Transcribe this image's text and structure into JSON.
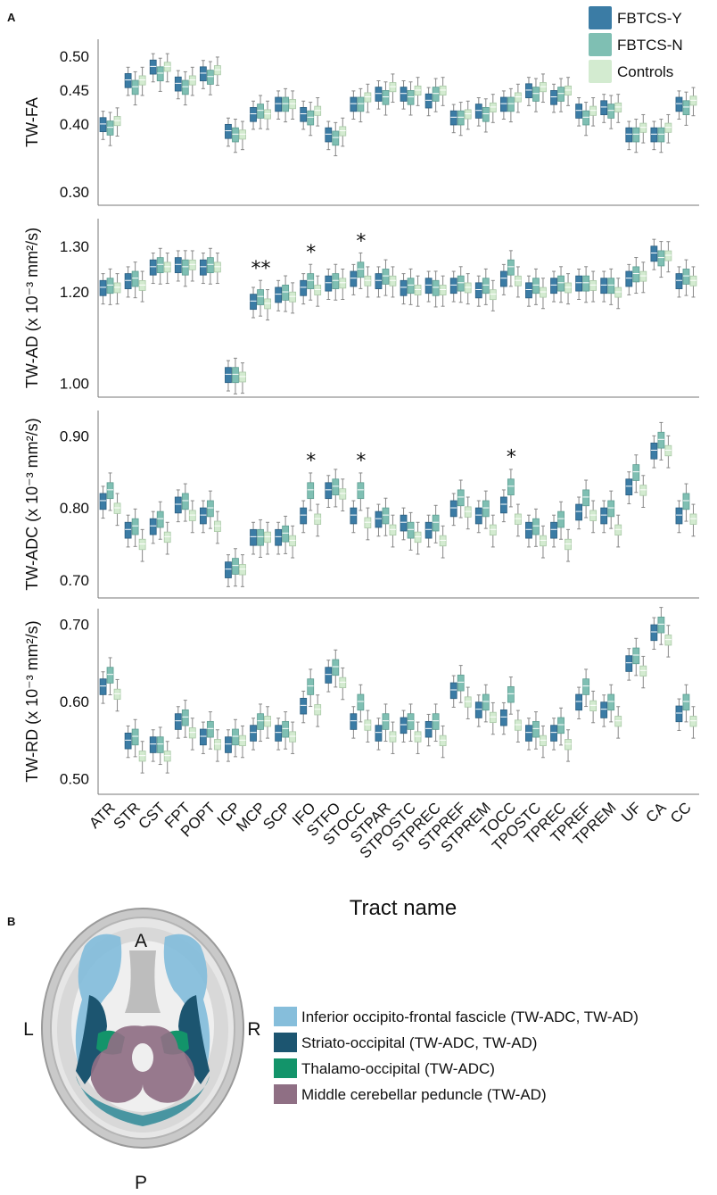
{
  "panel_a_label": "A",
  "panel_b_label": "B",
  "chart_data": {
    "type": "box",
    "legend": [
      {
        "name": "FBTCS-Y",
        "color": "#3b7ca5"
      },
      {
        "name": "FBTCS-N",
        "color": "#7fbfb3"
      },
      {
        "name": "Controls",
        "color": "#d3ebd0"
      }
    ],
    "categories": [
      "ATR",
      "STR",
      "CST",
      "FPT",
      "POPT",
      "ICP",
      "MCP",
      "SCP",
      "IFO",
      "STFO",
      "STOCC",
      "STPAR",
      "STPOSTC",
      "STPREC",
      "STPREF",
      "STPREM",
      "TOCC",
      "TPOSTC",
      "TPREC",
      "TPREF",
      "TPREM",
      "UF",
      "CA",
      "CC"
    ],
    "xlabel": "Tract name",
    "panels": [
      {
        "ylabel": "TW-FA",
        "ylim": [
          0.28,
          0.525
        ],
        "yticks": [
          "0.30",
          "0.40",
          "0.45",
          "0.50"
        ],
        "ytick_values": [
          0.3,
          0.4,
          0.45,
          0.5
        ],
        "significance": [],
        "medians": [
          [
            0.4,
            0.395,
            0.405
          ],
          [
            0.465,
            0.455,
            0.465
          ],
          [
            0.485,
            0.475,
            0.485
          ],
          [
            0.46,
            0.455,
            0.465
          ],
          [
            0.475,
            0.47,
            0.48
          ],
          [
            0.39,
            0.385,
            0.385
          ],
          [
            0.415,
            0.42,
            0.415
          ],
          [
            0.43,
            0.43,
            0.43
          ],
          [
            0.415,
            0.41,
            0.42
          ],
          [
            0.385,
            0.38,
            0.39
          ],
          [
            0.43,
            0.43,
            0.44
          ],
          [
            0.445,
            0.44,
            0.455
          ],
          [
            0.445,
            0.44,
            0.45
          ],
          [
            0.435,
            0.445,
            0.45
          ],
          [
            0.41,
            0.41,
            0.415
          ],
          [
            0.42,
            0.415,
            0.425
          ],
          [
            0.43,
            0.43,
            0.44
          ],
          [
            0.45,
            0.445,
            0.455
          ],
          [
            0.44,
            0.445,
            0.45
          ],
          [
            0.42,
            0.41,
            0.42
          ],
          [
            0.425,
            0.42,
            0.425
          ],
          [
            0.385,
            0.385,
            0.395
          ],
          [
            0.385,
            0.385,
            0.395
          ],
          [
            0.43,
            0.425,
            0.435
          ]
        ]
      },
      {
        "ylabel": "TW-AD (x 10⁻³ mm²/s)",
        "ylim": [
          0.97,
          1.36
        ],
        "yticks": [
          "1.00",
          "1.20",
          "1.30"
        ],
        "ytick_values": [
          1.0,
          1.2,
          1.3
        ],
        "significance": [
          {
            "category": "MCP",
            "text": "**"
          },
          {
            "category": "IFO",
            "text": "*"
          },
          {
            "category": "STOCC",
            "text": "*"
          }
        ],
        "medians": [
          [
            1.21,
            1.215,
            1.21
          ],
          [
            1.225,
            1.23,
            1.215
          ],
          [
            1.255,
            1.26,
            1.255
          ],
          [
            1.26,
            1.255,
            1.26
          ],
          [
            1.255,
            1.26,
            1.255
          ],
          [
            1.02,
            1.02,
            1.015
          ],
          [
            1.18,
            1.19,
            1.175
          ],
          [
            1.195,
            1.2,
            1.19
          ],
          [
            1.21,
            1.225,
            1.205
          ],
          [
            1.22,
            1.225,
            1.22
          ],
          [
            1.23,
            1.25,
            1.225
          ],
          [
            1.225,
            1.235,
            1.225
          ],
          [
            1.21,
            1.215,
            1.205
          ],
          [
            1.215,
            1.21,
            1.205
          ],
          [
            1.215,
            1.22,
            1.21
          ],
          [
            1.205,
            1.215,
            1.195
          ],
          [
            1.23,
            1.255,
            1.225
          ],
          [
            1.205,
            1.215,
            1.2
          ],
          [
            1.215,
            1.22,
            1.21
          ],
          [
            1.22,
            1.22,
            1.215
          ],
          [
            1.215,
            1.215,
            1.2
          ],
          [
            1.23,
            1.24,
            1.235
          ],
          [
            1.285,
            1.275,
            1.28
          ],
          [
            1.225,
            1.235,
            1.225
          ]
        ]
      },
      {
        "ylabel": "TW-ADC (x 10⁻³ mm²/s)",
        "ylim": [
          0.675,
          0.935
        ],
        "yticks": [
          "0.70",
          "0.80",
          "0.90"
        ],
        "ytick_values": [
          0.7,
          0.8,
          0.9
        ],
        "significance": [
          {
            "category": "IFO",
            "text": "*"
          },
          {
            "category": "STOCC",
            "text": "*"
          },
          {
            "category": "TOCC",
            "text": "*"
          }
        ],
        "medians": [
          [
            0.81,
            0.825,
            0.8
          ],
          [
            0.77,
            0.775,
            0.75
          ],
          [
            0.775,
            0.785,
            0.76
          ],
          [
            0.805,
            0.81,
            0.79
          ],
          [
            0.79,
            0.8,
            0.775
          ],
          [
            0.715,
            0.72,
            0.715
          ],
          [
            0.76,
            0.76,
            0.76
          ],
          [
            0.76,
            0.765,
            0.755
          ],
          [
            0.79,
            0.825,
            0.785
          ],
          [
            0.825,
            0.83,
            0.82
          ],
          [
            0.79,
            0.825,
            0.78
          ],
          [
            0.785,
            0.79,
            0.77
          ],
          [
            0.78,
            0.77,
            0.76
          ],
          [
            0.77,
            0.78,
            0.755
          ],
          [
            0.8,
            0.815,
            0.795
          ],
          [
            0.79,
            0.8,
            0.77
          ],
          [
            0.805,
            0.83,
            0.785
          ],
          [
            0.77,
            0.775,
            0.755
          ],
          [
            0.77,
            0.785,
            0.75
          ],
          [
            0.795,
            0.815,
            0.79
          ],
          [
            0.79,
            0.8,
            0.77
          ],
          [
            0.83,
            0.85,
            0.825
          ],
          [
            0.88,
            0.895,
            0.88
          ],
          [
            0.79,
            0.81,
            0.785
          ]
        ]
      },
      {
        "ylabel": "TW-RD (x 10⁻³ mm²/s)",
        "ylim": [
          0.48,
          0.72
        ],
        "yticks": [
          "0.50",
          "0.60",
          "0.70"
        ],
        "ytick_values": [
          0.5,
          0.6,
          0.7
        ],
        "significance": [],
        "medians": [
          [
            0.62,
            0.635,
            0.61
          ],
          [
            0.55,
            0.555,
            0.53
          ],
          [
            0.545,
            0.545,
            0.53
          ],
          [
            0.575,
            0.58,
            0.56
          ],
          [
            0.555,
            0.565,
            0.545
          ],
          [
            0.545,
            0.555,
            0.55
          ],
          [
            0.56,
            0.575,
            0.575
          ],
          [
            0.56,
            0.565,
            0.555
          ],
          [
            0.595,
            0.62,
            0.59
          ],
          [
            0.635,
            0.645,
            0.625
          ],
          [
            0.575,
            0.6,
            0.57
          ],
          [
            0.56,
            0.575,
            0.555
          ],
          [
            0.57,
            0.575,
            0.555
          ],
          [
            0.565,
            0.575,
            0.55
          ],
          [
            0.615,
            0.625,
            0.6
          ],
          [
            0.59,
            0.6,
            0.58
          ],
          [
            0.58,
            0.61,
            0.57
          ],
          [
            0.56,
            0.565,
            0.55
          ],
          [
            0.56,
            0.57,
            0.545
          ],
          [
            0.6,
            0.62,
            0.595
          ],
          [
            0.59,
            0.6,
            0.575
          ],
          [
            0.65,
            0.66,
            0.64
          ],
          [
            0.69,
            0.7,
            0.68
          ],
          [
            0.585,
            0.6,
            0.575
          ]
        ]
      }
    ]
  },
  "brain_figure": {
    "orientation": {
      "anterior": "A",
      "posterior": "P",
      "left": "L",
      "right": "R"
    },
    "tracts": [
      {
        "name": "Inferior occipito-frontal fascicle (TW-ADC, TW-AD)",
        "color": "#86bedb"
      },
      {
        "name": "Striato-occipital (TW-ADC, TW-AD)",
        "color": "#1c5570"
      },
      {
        "name": "Thalamo-occipital (TW-ADC)",
        "color": "#13946a"
      },
      {
        "name": "Middle cerebellar peduncle (TW-AD)",
        "color": "#8f6f84"
      }
    ]
  }
}
